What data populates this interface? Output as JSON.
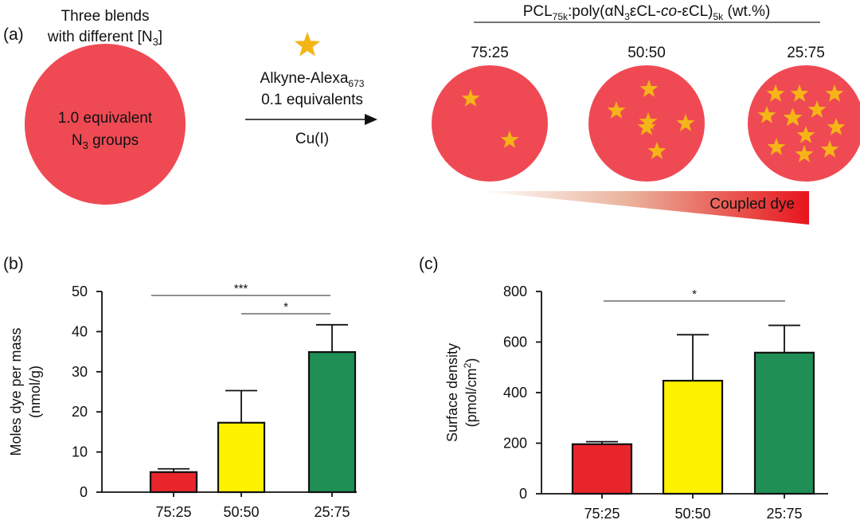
{
  "panel_a": {
    "label": "(a)",
    "left_caption_line1": "Three blends",
    "left_caption_line2": "with different [N",
    "left_caption_line2_sub": "3",
    "left_caption_line2_end": "]",
    "circle_text_line1": "1.0 equivalent",
    "circle_text_line2": "N",
    "circle_text_line2_sub": "3",
    "circle_text_line2_end": " groups",
    "reagent_line1": "Alkyne-Alexa",
    "reagent_line1_sub": "673",
    "reagent_line2": "0.1 equivalents",
    "catalyst": "Cu(I)",
    "blend_title": {
      "a": "PCL",
      "a_sub": "75k",
      "b": ":poly(αN",
      "b_sub": "3",
      "c": "εCL-",
      "d": "co",
      "e": "-εCL)",
      "e_sub": "5k",
      "f": " (wt.%)"
    },
    "ratios": [
      {
        "label": "75:25",
        "stars": 2
      },
      {
        "label": "50:50",
        "stars": 6
      },
      {
        "label": "25:75",
        "stars": 12
      }
    ],
    "gradient_label": "Coupled dye",
    "colors": {
      "circle": "#ef4a54",
      "star": "#f5b517",
      "gradient_end": "#e8141c"
    }
  },
  "chart_data": [
    {
      "panel": "(b)",
      "type": "bar",
      "categories": [
        "75:25",
        "50:50",
        "25:75"
      ],
      "values": [
        5,
        17.3,
        34.9
      ],
      "errors": [
        0.8,
        8.0,
        6.8
      ],
      "colors": [
        "#e8252a",
        "#fff200",
        "#1f8f55"
      ],
      "ylabel_line1": "Moles dye per mass",
      "ylabel_line2": "(nmol/g)",
      "ylim": [
        0,
        50
      ],
      "yticks": [
        0,
        10,
        20,
        30,
        40,
        50
      ],
      "significance": [
        {
          "from": 0,
          "to": 2,
          "label": "***"
        },
        {
          "from": 1,
          "to": 2,
          "label": "*"
        }
      ]
    },
    {
      "panel": "(c)",
      "type": "bar",
      "categories": [
        "75:25",
        "50:50",
        "25:75"
      ],
      "values": [
        196,
        447,
        558
      ],
      "errors": [
        10,
        182,
        108
      ],
      "colors": [
        "#e8252a",
        "#fff200",
        "#1f8f55"
      ],
      "ylabel_line1": "Surface density",
      "ylabel_line2": "(pmol/cm",
      "ylabel_line2_sup": "2",
      "ylabel_line2_end": ")",
      "ylim": [
        0,
        800
      ],
      "yticks": [
        0,
        200,
        400,
        600,
        800
      ],
      "significance": [
        {
          "from": 0,
          "to": 2,
          "label": "*"
        }
      ]
    }
  ]
}
